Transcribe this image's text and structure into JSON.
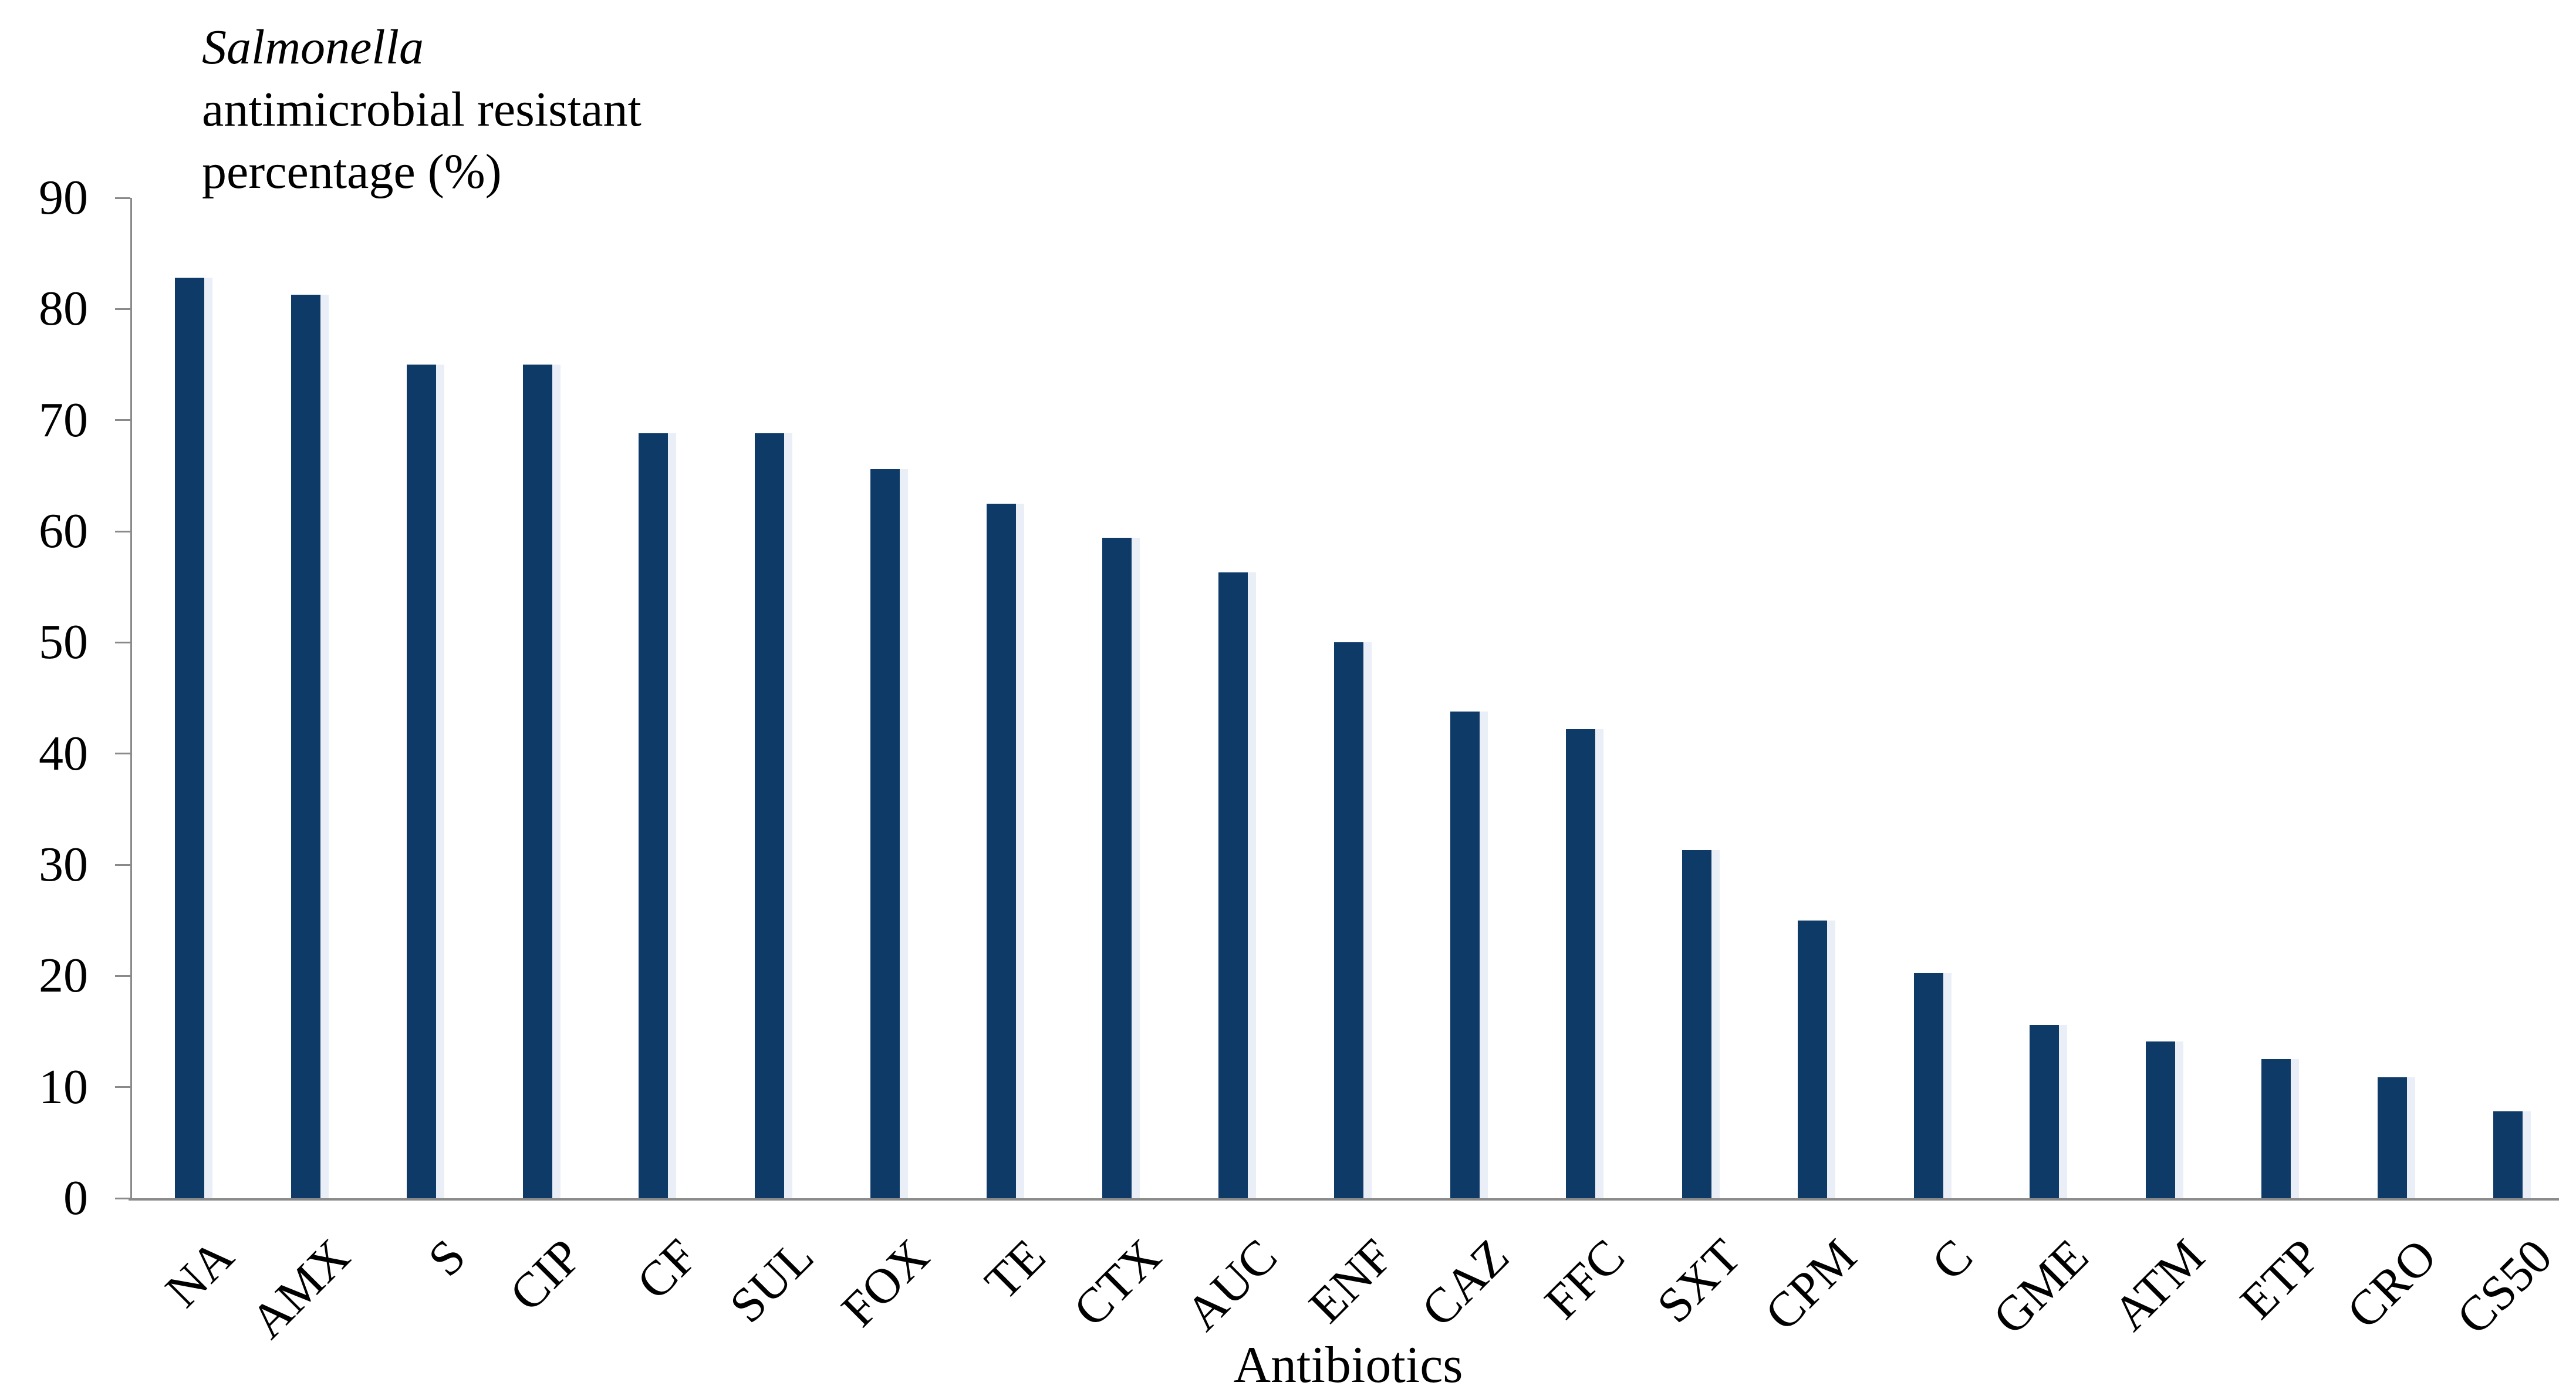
{
  "title": {
    "species": "Salmonella",
    "line2": "antimicrobial resistant",
    "line3": "percentage (%)"
  },
  "chart_data": {
    "type": "bar",
    "title": "Salmonella antimicrobial resistant percentage (%)",
    "categories": [
      "NA",
      "AMX",
      "S",
      "CIP",
      "CF",
      "SUL",
      "FOX",
      "TE",
      "CTX",
      "AUC",
      "ENF",
      "CAZ",
      "FFC",
      "SXT",
      "CPM",
      "C",
      "GME",
      "ATM",
      "ETP",
      "CRO",
      "CS50"
    ],
    "values": [
      82.8,
      81.3,
      75.0,
      75.0,
      68.8,
      68.8,
      65.6,
      62.5,
      59.4,
      56.3,
      50.0,
      43.8,
      42.2,
      31.3,
      25.0,
      20.3,
      15.6,
      14.1,
      12.5,
      10.9,
      7.8
    ],
    "xlabel": "Antibiotics",
    "ylabel": "Salmonella antimicrobial resistant percentage (%)",
    "ylim": [
      0,
      90
    ],
    "yticks": [
      90,
      80,
      70,
      60,
      50,
      40,
      30,
      20,
      10,
      0
    ],
    "grid": false,
    "legend": "none",
    "bar_color": "#0e3a68",
    "bar_highlight_color": "#e9eef7",
    "axis_color": "#8a8a8a",
    "text_color": "#000000"
  }
}
